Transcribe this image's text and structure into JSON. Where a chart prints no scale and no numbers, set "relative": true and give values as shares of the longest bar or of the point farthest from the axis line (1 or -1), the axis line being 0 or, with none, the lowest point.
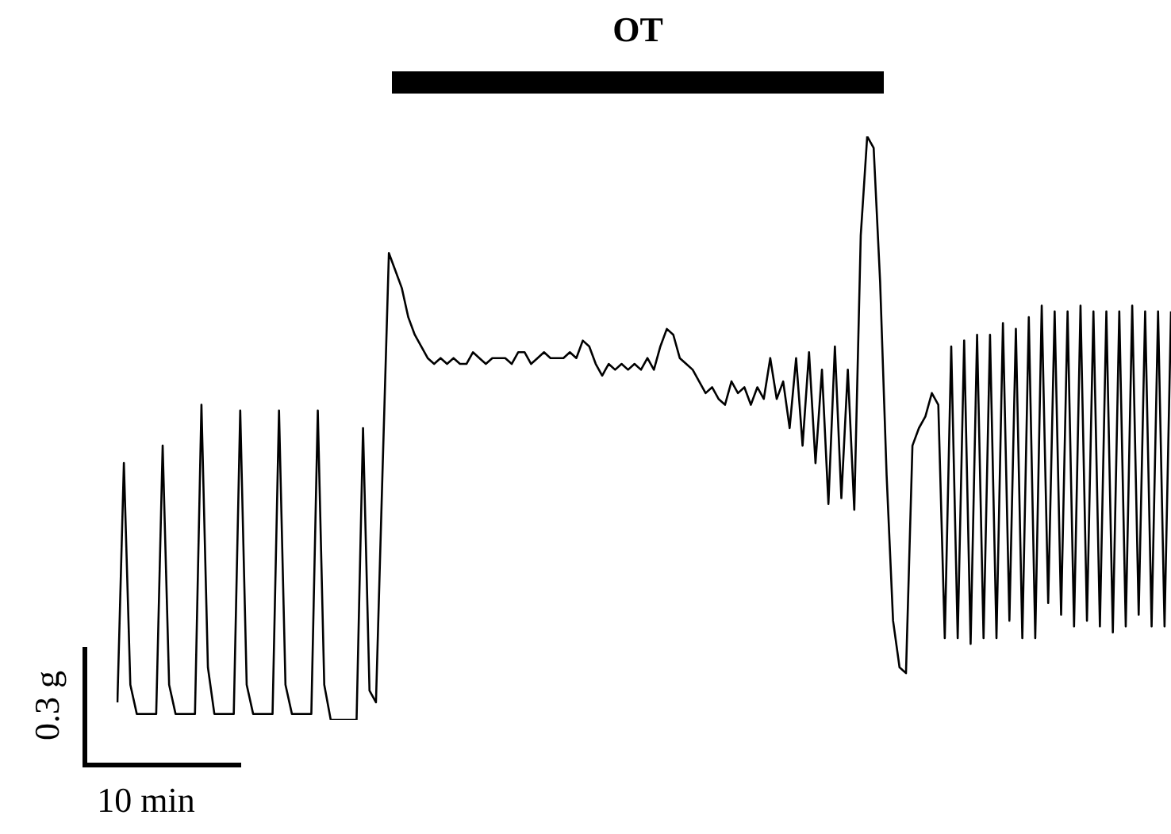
{
  "chart_data": {
    "type": "line",
    "relative": true,
    "marker": "none",
    "annotations": [
      "OT",
      "0.3 g",
      "10 min"
    ],
    "categories": [
      null,
      null,
      null,
      null,
      null,
      null,
      null,
      null,
      null,
      null,
      null,
      null,
      null,
      null,
      null,
      null,
      null,
      null,
      null,
      null,
      null,
      null,
      null,
      null,
      null,
      null,
      null,
      null,
      null,
      null,
      null,
      null,
      null,
      null,
      null,
      null,
      null,
      null,
      null,
      null,
      null,
      null,
      null,
      null,
      null,
      null,
      null,
      null,
      null,
      null,
      null,
      null,
      null,
      null,
      null,
      null,
      null,
      null,
      null,
      null,
      null,
      null,
      null,
      null,
      null,
      null,
      null,
      null,
      null,
      null,
      null,
      null,
      null,
      null,
      null,
      null,
      null,
      null,
      null,
      null,
      null,
      null,
      null,
      null,
      null,
      null,
      null,
      null,
      null,
      null,
      null,
      null,
      null,
      null,
      null,
      null,
      null,
      null,
      null,
      null,
      null,
      null,
      null,
      null,
      null,
      null,
      null,
      null,
      null,
      null,
      null,
      null,
      null,
      null,
      null,
      null,
      null,
      null,
      null,
      null,
      null,
      null,
      null,
      null,
      null,
      null,
      null,
      null,
      null,
      null,
      null,
      null,
      null,
      null,
      null,
      null,
      null,
      null,
      null,
      null,
      null,
      null,
      null,
      null,
      null,
      null,
      null,
      null,
      null,
      null,
      null,
      null,
      null,
      null,
      null,
      null,
      null,
      null,
      null,
      null,
      null,
      null,
      null,
      null
    ],
    "series": [
      {
        "color": "#000000",
        "values": [
          0.03,
          0.44,
          0.06,
          0.01,
          0.01,
          0.01,
          0.01,
          0.47,
          0.06,
          0.01,
          0.01,
          0.01,
          0.01,
          0.54,
          0.09,
          0.01,
          0.01,
          0.01,
          0.01,
          0.53,
          0.06,
          0.01,
          0.01,
          0.01,
          0.01,
          0.53,
          0.06,
          0.01,
          0.01,
          0.01,
          0.01,
          0.53,
          0.06,
          0.0,
          0.0,
          0.0,
          0.0,
          0.0,
          0.5,
          0.05,
          0.03,
          0.42,
          0.8,
          0.77,
          0.74,
          0.69,
          0.66,
          0.64,
          0.62,
          0.61,
          0.62,
          0.61,
          0.62,
          0.61,
          0.61,
          0.63,
          0.62,
          0.61,
          0.62,
          0.62,
          0.62,
          0.61,
          0.63,
          0.63,
          0.61,
          0.62,
          0.63,
          0.62,
          0.62,
          0.62,
          0.63,
          0.62,
          0.65,
          0.64,
          0.61,
          0.59,
          0.61,
          0.6,
          0.61,
          0.6,
          0.61,
          0.6,
          0.62,
          0.6,
          0.64,
          0.67,
          0.66,
          0.62,
          0.61,
          0.6,
          0.58,
          0.56,
          0.57,
          0.55,
          0.54,
          0.58,
          0.56,
          0.57,
          0.54,
          0.57,
          0.55,
          0.62,
          0.55,
          0.58,
          0.5,
          0.62,
          0.47,
          0.63,
          0.44,
          0.6,
          0.37,
          0.64,
          0.38,
          0.6,
          0.36,
          0.83,
          1.0,
          0.98,
          0.75,
          0.42,
          0.17,
          0.09,
          0.08,
          0.47,
          0.5,
          0.52,
          0.56,
          0.54,
          0.14,
          0.64,
          0.14,
          0.65,
          0.13,
          0.66,
          0.14,
          0.66,
          0.14,
          0.68,
          0.17,
          0.67,
          0.14,
          0.69,
          0.14,
          0.71,
          0.2,
          0.7,
          0.18,
          0.7,
          0.16,
          0.71,
          0.17,
          0.7,
          0.16,
          0.7,
          0.15,
          0.7,
          0.16,
          0.71,
          0.18,
          0.7,
          0.16,
          0.7,
          0.16,
          0.7
        ]
      }
    ]
  }
}
